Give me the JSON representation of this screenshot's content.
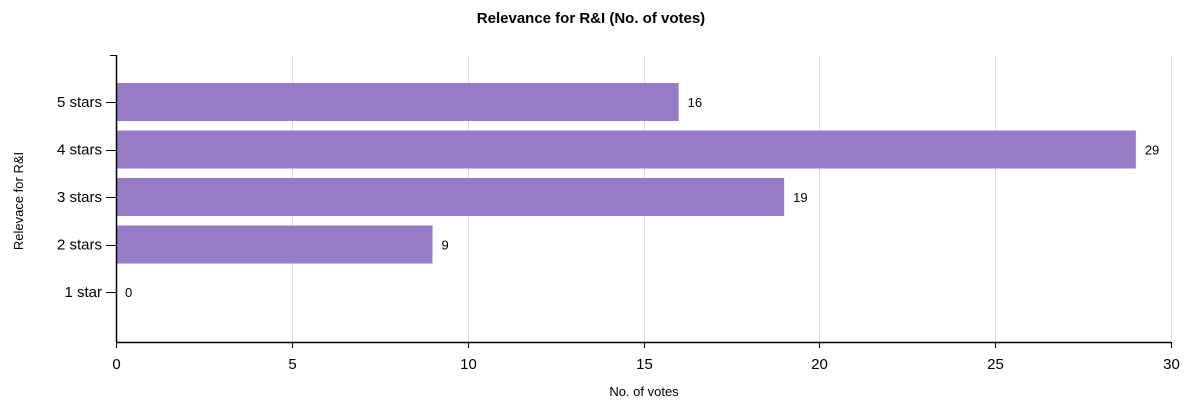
{
  "chart_data": {
    "type": "bar",
    "orientation": "horizontal",
    "title": "Relevance for R&I (No. of votes)",
    "xlabel": "No. of votes",
    "ylabel": "Relevace for R&I",
    "categories": [
      "5 stars",
      "4 stars",
      "3 stars",
      "2 stars",
      "1 star"
    ],
    "values": [
      16,
      29,
      19,
      9,
      0
    ],
    "data_labels": [
      "16",
      "29",
      "19",
      "9",
      "0"
    ],
    "xlim": [
      0,
      30
    ],
    "x_ticks": [
      0,
      5,
      10,
      15,
      20,
      25,
      30
    ],
    "x_tick_labels": [
      "0",
      "5",
      "10",
      "15",
      "20",
      "25",
      "30"
    ],
    "grid": true,
    "legend": "none",
    "colors": {
      "bar": "#967BC6",
      "grid": "#DDDDDD",
      "axis": "#000000",
      "background": "#FFFFFF"
    }
  }
}
